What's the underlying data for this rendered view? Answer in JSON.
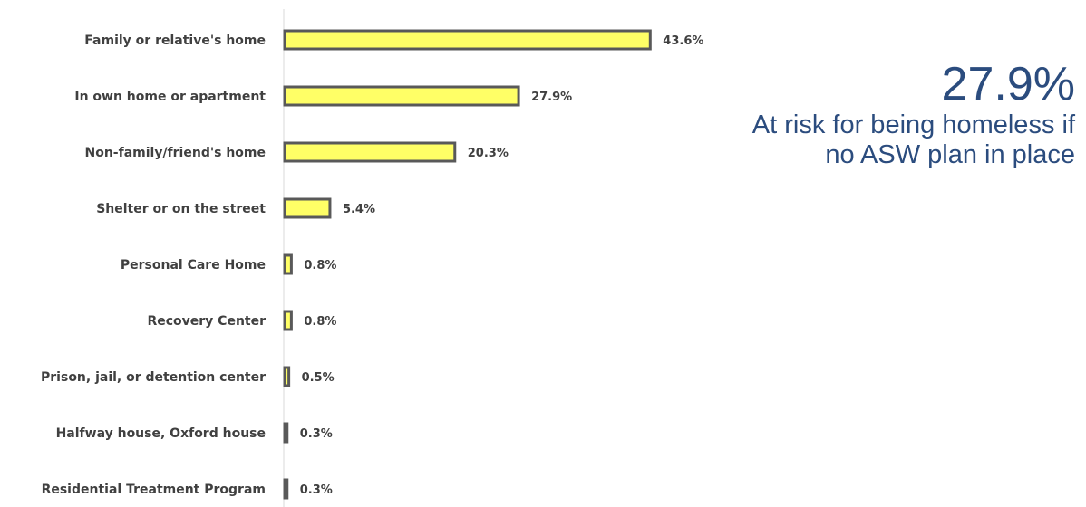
{
  "chart_data": {
    "type": "bar",
    "orientation": "horizontal",
    "categories": [
      "Family or relative's home",
      "In own home or apartment",
      "Non-family/friend's home",
      "Shelter or on the street",
      "Personal Care Home",
      "Recovery Center",
      "Prison, jail, or detention center",
      "Halfway house, Oxford house",
      "Residential Treatment Program"
    ],
    "values": [
      43.6,
      27.9,
      20.3,
      5.4,
      0.8,
      0.8,
      0.5,
      0.3,
      0.3
    ],
    "value_labels": [
      "43.6%",
      "27.9%",
      "20.3%",
      "5.4%",
      "0.8%",
      "0.8%",
      "0.5%",
      "0.3%",
      "0.3%"
    ],
    "title": "",
    "xlabel": "",
    "ylabel": "",
    "xlim": [
      0,
      50
    ],
    "grid": false,
    "legend": "none",
    "colors": {
      "bar_fill": "#ffff66",
      "bar_stroke": "#595959",
      "label_text": "#404040"
    }
  },
  "callout": {
    "value": "27.9%",
    "line1": "At risk for being homeless if",
    "line2": "no ASW plan in place",
    "color": "#2b4c7e"
  }
}
